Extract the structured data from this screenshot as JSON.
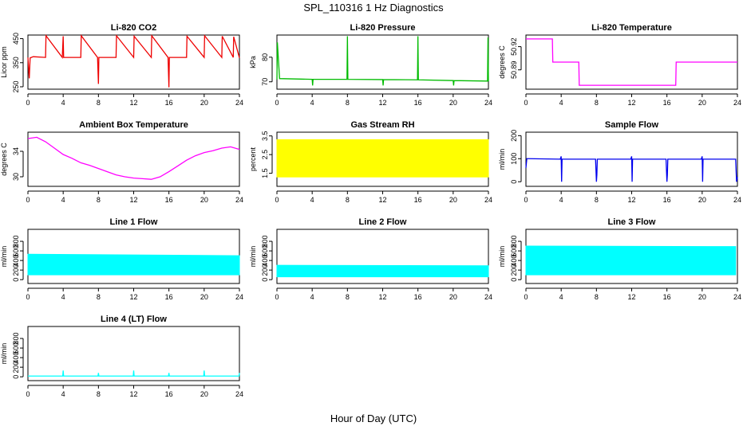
{
  "header": {
    "title": "SPL_110316  1 Hz Diagnostics"
  },
  "footer": {
    "xlabel": "Hour of Day (UTC)"
  },
  "chart_data": [
    {
      "id": "co2",
      "type": "line",
      "title": "Li-820 CO2",
      "ylabel": "Licor ppm",
      "color": "#ee0000",
      "xlim": [
        0,
        24
      ],
      "xticks": [
        0,
        4,
        8,
        12,
        16,
        20,
        24
      ],
      "ylim": [
        240,
        465
      ],
      "yticks": [
        250,
        350,
        450
      ],
      "x": [
        0,
        0.15,
        0.25,
        0.6,
        2.0,
        2.05,
        3.9,
        4.0,
        4.05,
        6.0,
        6.05,
        7.9,
        8.0,
        8.05,
        10.0,
        10.05,
        12.0,
        12.05,
        14.0,
        14.05,
        15.9,
        16.0,
        16.05,
        18.0,
        18.05,
        20.0,
        20.05,
        22.0,
        22.05,
        23.3,
        23.35,
        24.0
      ],
      "y": [
        372,
        285,
        370,
        375,
        372,
        462,
        372,
        460,
        372,
        372,
        462,
        372,
        262,
        372,
        372,
        462,
        372,
        460,
        372,
        462,
        372,
        248,
        372,
        372,
        460,
        372,
        462,
        372,
        460,
        372,
        458,
        370
      ]
    },
    {
      "id": "pressure",
      "type": "line",
      "title": "Li-820 Pressure",
      "ylabel": "kPa",
      "color": "#00bb00",
      "xlim": [
        0,
        24
      ],
      "xticks": [
        0,
        4,
        8,
        12,
        16,
        20,
        24
      ],
      "ylim": [
        67,
        89
      ],
      "yticks": [
        70,
        80
      ],
      "x": [
        0,
        0.05,
        0.3,
        4.0,
        4.05,
        4.1,
        7.95,
        8.0,
        8.05,
        12.0,
        12.05,
        12.1,
        15.95,
        16.0,
        16.05,
        20.0,
        20.05,
        20.1,
        23.9,
        23.95,
        24.0
      ],
      "y": [
        71,
        86,
        71.3,
        71,
        68.5,
        71,
        71,
        88.5,
        71,
        70.9,
        68.5,
        70.9,
        70.8,
        88.5,
        70.8,
        70.5,
        68.5,
        70.5,
        70.3,
        88,
        70.2
      ]
    },
    {
      "id": "temperature",
      "type": "line",
      "title": "Li-820 Temperature",
      "ylabel": "degrees C",
      "color": "#ff00ff",
      "xlim": [
        0,
        24
      ],
      "xticks": [
        0,
        4,
        8,
        12,
        16,
        20,
        24
      ],
      "ylim": [
        50.865,
        50.935
      ],
      "yticks": [
        50.89,
        50.92
      ],
      "x": [
        0,
        3.0,
        3.05,
        6.0,
        6.05,
        17.0,
        17.05,
        24.0
      ],
      "y": [
        50.93,
        50.93,
        50.9,
        50.9,
        50.87,
        50.87,
        50.9,
        50.9
      ]
    },
    {
      "id": "ambient",
      "type": "line",
      "title": "Ambient Box Temperature",
      "ylabel": "degrees C",
      "color": "#ff00ff",
      "xlim": [
        0,
        24
      ],
      "xticks": [
        0,
        4,
        8,
        12,
        16,
        20,
        24
      ],
      "ylim": [
        28.5,
        37
      ],
      "yticks": [
        30,
        34
      ],
      "x": [
        0,
        1,
        2,
        3,
        4,
        5,
        6,
        7,
        8,
        9,
        10,
        11,
        12,
        13,
        14,
        15,
        16,
        17,
        18,
        19,
        20,
        21,
        22,
        23,
        24
      ],
      "y": [
        36,
        36.2,
        35.5,
        34.5,
        33.5,
        32.9,
        32.2,
        31.8,
        31.3,
        30.8,
        30.3,
        30.0,
        29.8,
        29.7,
        29.6,
        30.0,
        30.8,
        31.7,
        32.6,
        33.3,
        33.8,
        34.1,
        34.5,
        34.7,
        34.3
      ]
    },
    {
      "id": "rh",
      "type": "area",
      "title": "Gas Stream RH",
      "ylabel": "percent",
      "color": "#ffff00",
      "xlim": [
        0,
        24
      ],
      "xticks": [
        0,
        4,
        8,
        12,
        16,
        20,
        24
      ],
      "ylim": [
        0.8,
        3.7
      ],
      "yticks": [
        1.5,
        2.5,
        3.5
      ],
      "x": [
        0,
        24
      ],
      "ymin": [
        1.3,
        1.3
      ],
      "ymax": [
        3.3,
        3.3
      ]
    },
    {
      "id": "sample",
      "type": "line",
      "title": "Sample Flow",
      "ylabel": "ml/min",
      "color": "#0000ee",
      "xlim": [
        0,
        24
      ],
      "xticks": [
        0,
        4,
        8,
        12,
        16,
        20,
        24
      ],
      "ylim": [
        -20,
        215
      ],
      "yticks": [
        0,
        100,
        200
      ],
      "x": [
        0,
        0.1,
        0.3,
        3.9,
        4.0,
        4.05,
        4.1,
        7.9,
        8.0,
        8.05,
        8.1,
        11.9,
        12.0,
        12.05,
        12.1,
        15.9,
        16.0,
        16.05,
        16.1,
        19.9,
        20.0,
        20.05,
        20.1,
        23.8,
        23.9,
        24.0
      ],
      "y": [
        60,
        100,
        100,
        98,
        110,
        0,
        98,
        98,
        0,
        30,
        98,
        98,
        110,
        0,
        98,
        98,
        0,
        30,
        98,
        98,
        110,
        0,
        98,
        98,
        0,
        20
      ]
    },
    {
      "id": "line1",
      "type": "area",
      "title": "Line 1 Flow",
      "ylabel": "ml/min",
      "color": "#00ffff",
      "xlim": [
        0,
        24
      ],
      "xticks": [
        0,
        4,
        8,
        12,
        16,
        20,
        24
      ],
      "ylim": [
        -80,
        1050
      ],
      "yticks": [
        0,
        200,
        400,
        600,
        800
      ],
      "x": [
        0,
        24
      ],
      "ymin": [
        100,
        100
      ],
      "ymax": [
        530,
        500
      ]
    },
    {
      "id": "line2",
      "type": "area",
      "title": "Line 2 Flow",
      "ylabel": "ml/min",
      "color": "#00ffff",
      "xlim": [
        0,
        24
      ],
      "xticks": [
        0,
        4,
        8,
        12,
        16,
        20,
        24
      ],
      "ylim": [
        -80,
        1050
      ],
      "yticks": [
        0,
        200,
        400,
        600,
        800
      ],
      "x": [
        0,
        24
      ],
      "ymin": [
        60,
        60
      ],
      "ymax": [
        300,
        290
      ]
    },
    {
      "id": "line3",
      "type": "area",
      "title": "Line 3 Flow",
      "ylabel": "ml/min",
      "color": "#00ffff",
      "xlim": [
        0,
        24
      ],
      "xticks": [
        0,
        4,
        8,
        12,
        16,
        20,
        24
      ],
      "ylim": [
        -80,
        1050
      ],
      "yticks": [
        0,
        200,
        400,
        600,
        800
      ],
      "x": [
        0,
        23.8
      ],
      "ymin": [
        100,
        100
      ],
      "ymax": [
        700,
        690
      ]
    },
    {
      "id": "line4",
      "type": "line",
      "title": "Line 4 (LT) Flow",
      "ylabel": "ml/min",
      "color": "#00ffff",
      "xlim": [
        0,
        24
      ],
      "xticks": [
        0,
        4,
        8,
        12,
        16,
        20,
        24
      ],
      "ylim": [
        -80,
        1050
      ],
      "yticks": [
        0,
        200,
        400,
        600,
        800
      ],
      "x": [
        0,
        3.95,
        4.0,
        4.05,
        7.95,
        8.0,
        8.05,
        11.95,
        12.0,
        12.05,
        15.95,
        16.0,
        16.05,
        19.95,
        20.0,
        20.05,
        23.95,
        24.0
      ],
      "y": [
        15,
        15,
        130,
        15,
        15,
        80,
        15,
        15,
        130,
        15,
        15,
        80,
        15,
        15,
        130,
        15,
        15,
        80
      ]
    }
  ]
}
